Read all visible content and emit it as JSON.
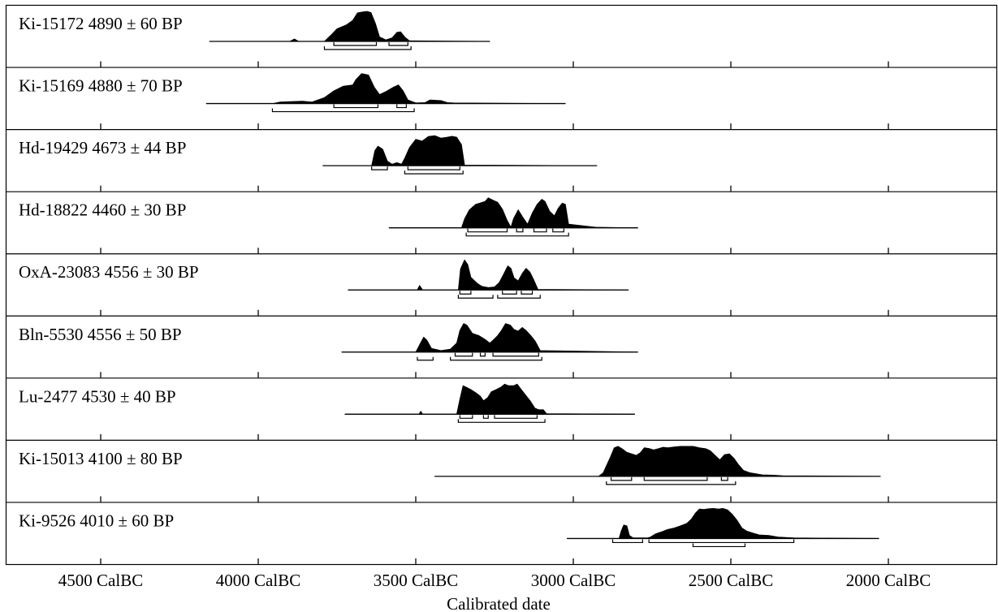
{
  "chart_data": {
    "type": "area",
    "xlabel": "Calibrated date",
    "x_axis_ticks": [
      4500,
      4000,
      3500,
      3000,
      2500,
      2000
    ],
    "x_tick_suffix": " CalBC",
    "x_direction": "descending",
    "xlim": [
      4795,
      1450
    ],
    "series": [
      {
        "name": "Ki-15172  4890 ± 60 BP",
        "line": [
          4155,
          3265
        ],
        "profile": [
          [
            4155,
            0
          ],
          [
            3900,
            0
          ],
          [
            3885,
            0.08
          ],
          [
            3872,
            0
          ],
          [
            3790,
            0
          ],
          [
            3770,
            0.2
          ],
          [
            3750,
            0.42
          ],
          [
            3720,
            0.55
          ],
          [
            3700,
            0.7
          ],
          [
            3685,
            0.95
          ],
          [
            3668,
            0.98
          ],
          [
            3655,
            1.0
          ],
          [
            3642,
            0.96
          ],
          [
            3628,
            0.6
          ],
          [
            3615,
            0.15
          ],
          [
            3595,
            0.05
          ],
          [
            3575,
            0.12
          ],
          [
            3560,
            0.3
          ],
          [
            3548,
            0.32
          ],
          [
            3535,
            0.15
          ],
          [
            3520,
            0.02
          ],
          [
            3265,
            0
          ]
        ],
        "ranges_68": [
          [
            3760,
            3625
          ],
          [
            3585,
            3525
          ]
        ],
        "ranges_95": [
          [
            3790,
            3515
          ]
        ]
      },
      {
        "name": "Ki-15169  4880 ± 70 BP",
        "line": [
          4165,
          3025
        ],
        "profile": [
          [
            4165,
            0
          ],
          [
            3955,
            0
          ],
          [
            3930,
            0.05
          ],
          [
            3860,
            0.08
          ],
          [
            3830,
            0.05
          ],
          [
            3790,
            0.2
          ],
          [
            3760,
            0.42
          ],
          [
            3730,
            0.58
          ],
          [
            3700,
            0.62
          ],
          [
            3690,
            0.8
          ],
          [
            3672,
            1.0
          ],
          [
            3650,
            0.95
          ],
          [
            3632,
            0.55
          ],
          [
            3615,
            0.3
          ],
          [
            3595,
            0.4
          ],
          [
            3570,
            0.55
          ],
          [
            3555,
            0.62
          ],
          [
            3540,
            0.42
          ],
          [
            3525,
            0.12
          ],
          [
            3500,
            0.02
          ],
          [
            3470,
            0.03
          ],
          [
            3455,
            0.12
          ],
          [
            3420,
            0.1
          ],
          [
            3400,
            0.03
          ],
          [
            3380,
            0.02
          ],
          [
            3025,
            0
          ]
        ],
        "ranges_68": [
          [
            3760,
            3620
          ],
          [
            3560,
            3530
          ]
        ],
        "ranges_95": [
          [
            3955,
            3505
          ]
        ]
      },
      {
        "name": "Hd-19429  4673 ± 44 BP",
        "line": [
          3795,
          2925
        ],
        "profile": [
          [
            3795,
            0
          ],
          [
            3640,
            0
          ],
          [
            3630,
            0.5
          ],
          [
            3620,
            0.65
          ],
          [
            3605,
            0.55
          ],
          [
            3590,
            0.15
          ],
          [
            3575,
            0.05
          ],
          [
            3560,
            0.1
          ],
          [
            3545,
            0.05
          ],
          [
            3535,
            0.25
          ],
          [
            3520,
            0.6
          ],
          [
            3500,
            0.88
          ],
          [
            3480,
            0.82
          ],
          [
            3460,
            0.97
          ],
          [
            3440,
            1.0
          ],
          [
            3420,
            0.92
          ],
          [
            3400,
            0.95
          ],
          [
            3385,
            0.98
          ],
          [
            3370,
            0.95
          ],
          [
            3355,
            0.7
          ],
          [
            3345,
            0.02
          ],
          [
            2925,
            0
          ]
        ],
        "ranges_68": [
          [
            3640,
            3590
          ],
          [
            3525,
            3360
          ]
        ],
        "ranges_95": [
          [
            3535,
            3350
          ]
        ]
      },
      {
        "name": "Hd-18822  4460 ± 30 BP",
        "line": [
          3585,
          2795
        ],
        "profile": [
          [
            3585,
            0
          ],
          [
            3355,
            0
          ],
          [
            3345,
            0.3
          ],
          [
            3330,
            0.6
          ],
          [
            3310,
            0.78
          ],
          [
            3295,
            0.83
          ],
          [
            3280,
            0.88
          ],
          [
            3270,
            1.0
          ],
          [
            3255,
            0.92
          ],
          [
            3240,
            0.85
          ],
          [
            3225,
            0.62
          ],
          [
            3210,
            0.25
          ],
          [
            3198,
            0.02
          ],
          [
            3190,
            0.3
          ],
          [
            3175,
            0.6
          ],
          [
            3160,
            0.35
          ],
          [
            3145,
            0.12
          ],
          [
            3130,
            0.5
          ],
          [
            3115,
            0.78
          ],
          [
            3100,
            0.95
          ],
          [
            3090,
            0.88
          ],
          [
            3075,
            0.55
          ],
          [
            3060,
            0.4
          ],
          [
            3048,
            0.65
          ],
          [
            3035,
            0.82
          ],
          [
            3025,
            0.78
          ],
          [
            3015,
            0.12
          ],
          [
            2930,
            0.02
          ],
          [
            2795,
            0
          ]
        ],
        "ranges_68": [
          [
            3335,
            3210
          ],
          [
            3180,
            3160
          ],
          [
            3125,
            3085
          ],
          [
            3065,
            3030
          ]
        ],
        "ranges_95": [
          [
            3340,
            3015
          ]
        ]
      },
      {
        "name": "OxA-23083  4556 ± 30 BP",
        "line": [
          3715,
          2825
        ],
        "profile": [
          [
            3715,
            0
          ],
          [
            3495,
            0
          ],
          [
            3488,
            0.15
          ],
          [
            3478,
            0
          ],
          [
            3365,
            0
          ],
          [
            3358,
            0.7
          ],
          [
            3345,
            1.0
          ],
          [
            3335,
            0.85
          ],
          [
            3325,
            0.42
          ],
          [
            3305,
            0.22
          ],
          [
            3290,
            0.12
          ],
          [
            3270,
            0.08
          ],
          [
            3250,
            0.1
          ],
          [
            3235,
            0.25
          ],
          [
            3220,
            0.55
          ],
          [
            3208,
            0.8
          ],
          [
            3198,
            0.72
          ],
          [
            3188,
            0.4
          ],
          [
            3175,
            0.3
          ],
          [
            3162,
            0.55
          ],
          [
            3150,
            0.72
          ],
          [
            3138,
            0.6
          ],
          [
            3126,
            0.35
          ],
          [
            3112,
            0.02
          ],
          [
            2825,
            0
          ]
        ],
        "ranges_68": [
          [
            3360,
            3325
          ],
          [
            3225,
            3180
          ],
          [
            3165,
            3130
          ]
        ],
        "ranges_95": [
          [
            3365,
            3255
          ],
          [
            3240,
            3105
          ]
        ]
      },
      {
        "name": "Bln-5530  4556 ± 50 BP",
        "line": [
          3735,
          2795
        ],
        "profile": [
          [
            3735,
            0
          ],
          [
            3500,
            0
          ],
          [
            3485,
            0.3
          ],
          [
            3475,
            0.5
          ],
          [
            3465,
            0.4
          ],
          [
            3450,
            0.12
          ],
          [
            3420,
            0.05
          ],
          [
            3390,
            0.1
          ],
          [
            3370,
            0.3
          ],
          [
            3360,
            0.72
          ],
          [
            3348,
            0.95
          ],
          [
            3338,
            0.9
          ],
          [
            3320,
            0.62
          ],
          [
            3300,
            0.55
          ],
          [
            3280,
            0.42
          ],
          [
            3265,
            0.3
          ],
          [
            3252,
            0.42
          ],
          [
            3240,
            0.55
          ],
          [
            3228,
            0.72
          ],
          [
            3215,
            0.95
          ],
          [
            3200,
            0.9
          ],
          [
            3188,
            0.75
          ],
          [
            3175,
            0.7
          ],
          [
            3162,
            0.82
          ],
          [
            3150,
            0.72
          ],
          [
            3135,
            0.55
          ],
          [
            3120,
            0.35
          ],
          [
            3105,
            0.05
          ],
          [
            2795,
            0
          ]
        ],
        "ranges_68": [
          [
            3375,
            3320
          ],
          [
            3295,
            3280
          ],
          [
            3255,
            3110
          ]
        ],
        "ranges_95": [
          [
            3495,
            3445
          ],
          [
            3390,
            3100
          ]
        ]
      },
      {
        "name": "Lu-2477  4530 ± 40 BP",
        "line": [
          3725,
          2805
        ],
        "profile": [
          [
            3725,
            0
          ],
          [
            3490,
            0
          ],
          [
            3484,
            0.1
          ],
          [
            3478,
            0
          ],
          [
            3370,
            0
          ],
          [
            3360,
            0.5
          ],
          [
            3350,
            0.95
          ],
          [
            3340,
            0.9
          ],
          [
            3325,
            0.82
          ],
          [
            3310,
            0.72
          ],
          [
            3295,
            0.6
          ],
          [
            3285,
            0.45
          ],
          [
            3272,
            0.55
          ],
          [
            3260,
            0.75
          ],
          [
            3245,
            0.82
          ],
          [
            3230,
            0.9
          ],
          [
            3218,
            1.0
          ],
          [
            3205,
            0.95
          ],
          [
            3190,
            0.95
          ],
          [
            3178,
            1.0
          ],
          [
            3165,
            0.82
          ],
          [
            3150,
            0.62
          ],
          [
            3135,
            0.42
          ],
          [
            3122,
            0.2
          ],
          [
            3110,
            0.15
          ],
          [
            3095,
            0.15
          ],
          [
            3085,
            0.02
          ],
          [
            2805,
            0
          ]
        ],
        "ranges_68": [
          [
            3360,
            3320
          ],
          [
            3285,
            3270
          ],
          [
            3250,
            3115
          ]
        ],
        "ranges_95": [
          [
            3365,
            3090
          ]
        ]
      },
      {
        "name": "Ki-15013  4100 ± 80 BP",
        "line": [
          3440,
          2025
        ],
        "profile": [
          [
            3440,
            0
          ],
          [
            2920,
            0
          ],
          [
            2905,
            0.12
          ],
          [
            2895,
            0.35
          ],
          [
            2882,
            0.65
          ],
          [
            2870,
            0.95
          ],
          [
            2858,
            1.0
          ],
          [
            2845,
            0.92
          ],
          [
            2830,
            0.8
          ],
          [
            2815,
            0.75
          ],
          [
            2800,
            0.7
          ],
          [
            2788,
            0.78
          ],
          [
            2775,
            0.95
          ],
          [
            2760,
            0.93
          ],
          [
            2745,
            0.88
          ],
          [
            2730,
            0.92
          ],
          [
            2715,
            0.97
          ],
          [
            2700,
            0.95
          ],
          [
            2680,
            0.98
          ],
          [
            2660,
            1.0
          ],
          [
            2640,
            1.0
          ],
          [
            2620,
            1.0
          ],
          [
            2600,
            0.95
          ],
          [
            2580,
            0.92
          ],
          [
            2565,
            0.85
          ],
          [
            2550,
            0.7
          ],
          [
            2535,
            0.55
          ],
          [
            2520,
            0.72
          ],
          [
            2505,
            0.75
          ],
          [
            2490,
            0.6
          ],
          [
            2475,
            0.38
          ],
          [
            2460,
            0.2
          ],
          [
            2440,
            0.12
          ],
          [
            2400,
            0.05
          ],
          [
            2365,
            0.04
          ],
          [
            2335,
            0.02
          ],
          [
            2025,
            0
          ]
        ],
        "ranges_68": [
          [
            2880,
            2815
          ],
          [
            2775,
            2575
          ],
          [
            2530,
            2510
          ]
        ],
        "ranges_95": [
          [
            2895,
            2485
          ]
        ]
      },
      {
        "name": "Ki-9526  4010 ± 60 BP",
        "line": [
          3020,
          2030
        ],
        "profile": [
          [
            3020,
            0
          ],
          [
            2855,
            0
          ],
          [
            2848,
            0.25
          ],
          [
            2840,
            0.45
          ],
          [
            2830,
            0.42
          ],
          [
            2822,
            0.1
          ],
          [
            2810,
            0.02
          ],
          [
            2765,
            0.02
          ],
          [
            2755,
            0.05
          ],
          [
            2740,
            0.15
          ],
          [
            2720,
            0.22
          ],
          [
            2700,
            0.3
          ],
          [
            2680,
            0.35
          ],
          [
            2660,
            0.42
          ],
          [
            2640,
            0.5
          ],
          [
            2625,
            0.65
          ],
          [
            2612,
            0.85
          ],
          [
            2600,
            0.98
          ],
          [
            2585,
            0.97
          ],
          [
            2570,
            0.99
          ],
          [
            2555,
            1.0
          ],
          [
            2540,
            0.98
          ],
          [
            2525,
            1.0
          ],
          [
            2510,
            0.95
          ],
          [
            2495,
            0.8
          ],
          [
            2480,
            0.6
          ],
          [
            2465,
            0.35
          ],
          [
            2450,
            0.25
          ],
          [
            2430,
            0.18
          ],
          [
            2410,
            0.12
          ],
          [
            2380,
            0.1
          ],
          [
            2350,
            0.05
          ],
          [
            2320,
            0.03
          ],
          [
            2300,
            0.02
          ],
          [
            2030,
            0
          ]
        ],
        "ranges_68": [
          [
            2875,
            2780
          ],
          [
            2760,
            2300
          ]
        ],
        "ranges_95": [
          [
            2620,
            2455
          ]
        ]
      }
    ]
  }
}
